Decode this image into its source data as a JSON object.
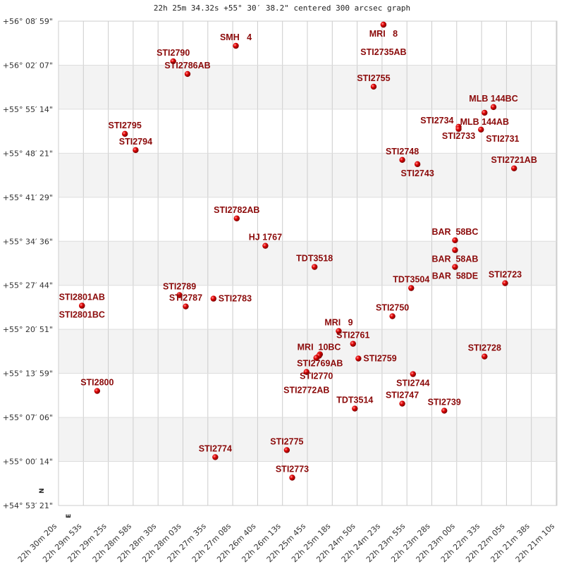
{
  "chart_data": {
    "type": "scatter",
    "title": "22h 25m 34.32s +55° 30′ 38.2\" centered 300 arcsec graph",
    "x_ticks": [
      "22h 30m 20s",
      "22h 29m 53s",
      "22h 29m 25s",
      "22h 28m 58s",
      "22h 28m 30s",
      "22h 28m 03s",
      "22h 27m 35s",
      "22h 27m 08s",
      "22h 26m 40s",
      "22h 26m 13s",
      "22h 25m 45s",
      "22h 25m 18s",
      "22h 24m 50s",
      "22h 24m 23s",
      "22h 23m 55s",
      "22h 23m 28s",
      "22h 23m 00s",
      "22h 22m 33s",
      "22h 22m 05s",
      "22h 21m 38s",
      "22h 21m 10s"
    ],
    "y_ticks": [
      "+56° 08′ 59\"",
      "+56° 02′ 07\"",
      "+55° 55′ 14\"",
      "+55° 48′ 21\"",
      "+55° 41′ 29\"",
      "+55° 34′ 36\"",
      "+55° 27′ 44\"",
      "+55° 20′ 51\"",
      "+55° 13′ 59\"",
      "+55° 07′ 06\"",
      "+55° 00′ 14\"",
      "+54° 53′ 21\""
    ],
    "x_range": [
      "22h 30m 20s",
      "22h 21m 10s"
    ],
    "y_range": [
      "+56° 08′ 59\"",
      "+54° 53′ 21\""
    ],
    "grid": true,
    "orientation_labels": {
      "north": "N",
      "east": "E"
    },
    "colors": {
      "star": "#dd0000",
      "label": "#8b0a0a",
      "band": "#f3f3f3",
      "grid": "#cccccc"
    },
    "points": [
      {
        "name": "MRI   8",
        "ra": "22h 24m 16s",
        "dec": "+56° 08′ 26\""
      },
      {
        "name": "STI2735AB",
        "ra": "22h 24m 16s",
        "dec": "+56° 08′ 26\""
      },
      {
        "name": "SMH   4",
        "ra": "22h 27m 01s",
        "dec": "+56° 05′ 08\""
      },
      {
        "name": "STI2790",
        "ra": "22h 28m 11s",
        "dec": "+56° 02′ 43\""
      },
      {
        "name": "STI2786AB",
        "ra": "22h 27m 55s",
        "dec": "+56° 00′ 44\""
      },
      {
        "name": "STI2755",
        "ra": "22h 24m 27s",
        "dec": "+55° 58′ 45\""
      },
      {
        "name": "MLB 144BC",
        "ra": "22h 22m 13s",
        "dec": "+55° 55′ 34\""
      },
      {
        "name": "MLB 144AB",
        "ra": "22h 22m 23s",
        "dec": "+55° 54′ 41\""
      },
      {
        "name": "STI2733",
        "ra": "22h 22m 52s",
        "dec": "+55° 52′ 29\""
      },
      {
        "name": "STI2734",
        "ra": "22h 22m 52s",
        "dec": "+55° 52′ 09\""
      },
      {
        "name": "STI2731",
        "ra": "22h 22m 27s",
        "dec": "+55° 52′ 03\""
      },
      {
        "name": "STI2795",
        "ra": "22h 29m 05s",
        "dec": "+55° 51′ 23\""
      },
      {
        "name": "STI2794",
        "ra": "22h 28m 53s",
        "dec": "+55° 48′ 51\""
      },
      {
        "name": "STI2748",
        "ra": "22h 23m 55s",
        "dec": "+55° 47′ 19\""
      },
      {
        "name": "STI2743",
        "ra": "22h 23m 38s",
        "dec": "+55° 46′ 39\""
      },
      {
        "name": "STI2721AB",
        "ra": "22h 21m 50s",
        "dec": "+55° 46′ 00\""
      },
      {
        "name": "STI2782AB",
        "ra": "22h 27m 00s",
        "dec": "+55° 38′ 11\""
      },
      {
        "name": "HJ 1767",
        "ra": "22h 26m 28s",
        "dec": "+55° 33′ 54\""
      },
      {
        "name": "BAR  58BC",
        "ra": "22h 22m 56s",
        "dec": "+55° 34′ 46\""
      },
      {
        "name": "BAR  58AB",
        "ra": "22h 22m 56s",
        "dec": "+55° 33′ 14\""
      },
      {
        "name": "BAR  58DE",
        "ra": "22h 22m 56s",
        "dec": "+55° 30′ 36\""
      },
      {
        "name": "TDT3518",
        "ra": "22h 25m 33s",
        "dec": "+55° 30′ 36\""
      },
      {
        "name": "TDT3504",
        "ra": "22h 23m 45s",
        "dec": "+55° 27′ 18\""
      },
      {
        "name": "STI2723",
        "ra": "22h 22m 00s",
        "dec": "+55° 28′ 04\""
      },
      {
        "name": "STI2801AB",
        "ra": "22h 29m 53s",
        "dec": "+55° 24′ 33\""
      },
      {
        "name": "STI2801BC",
        "ra": "22h 29m 53s",
        "dec": "+55° 24′ 33\""
      },
      {
        "name": "STI2789",
        "ra": "22h 28m 04s",
        "dec": "+55° 26′ 12\""
      },
      {
        "name": "STI2787",
        "ra": "22h 27m 57s",
        "dec": "+55° 24′ 26\""
      },
      {
        "name": "STI2783",
        "ra": "22h 27m 26s",
        "dec": "+55° 25′ 39\""
      },
      {
        "name": "STI2750",
        "ra": "22h 24m 06s",
        "dec": "+55° 22′ 54\""
      },
      {
        "name": "MRI   9",
        "ra": "22h 25m 06s",
        "dec": "+55° 20′ 35\""
      },
      {
        "name": "STI2761",
        "ra": "22h 24m 50s",
        "dec": "+55° 18′ 36\""
      },
      {
        "name": "STI2769AB",
        "ra": "22h 25m 27s",
        "dec": "+55° 16′ 57\""
      },
      {
        "name": "MRI  10BC",
        "ra": "22h 25m 28s",
        "dec": "+55° 16′ 44\""
      },
      {
        "name": "STI2770",
        "ra": "22h 25m 31s",
        "dec": "+55° 16′ 24\""
      },
      {
        "name": "STI2759",
        "ra": "22h 24m 44s",
        "dec": "+55° 16′ 18\""
      },
      {
        "name": "STI2772AB",
        "ra": "22h 25m 42s",
        "dec": "+55° 14′ 12\""
      },
      {
        "name": "STI2744",
        "ra": "22h 23m 43s",
        "dec": "+55° 13′ 52\""
      },
      {
        "name": "STI2728",
        "ra": "22h 22m 23s",
        "dec": "+55° 16′ 37\""
      },
      {
        "name": "STI2800",
        "ra": "22h 29m 36s",
        "dec": "+55° 11′ 14\""
      },
      {
        "name": "TDT3514",
        "ra": "22h 24m 48s",
        "dec": "+55° 08′ 29\""
      },
      {
        "name": "STI2747",
        "ra": "22h 23m 55s",
        "dec": "+55° 09′ 15\""
      },
      {
        "name": "STI2739",
        "ra": "22h 23m 08s",
        "dec": "+55° 08′ 09\""
      },
      {
        "name": "STI2774",
        "ra": "22h 27m 24s",
        "dec": "+55° 00′ 54\""
      },
      {
        "name": "STI2775",
        "ra": "22h 26m 04s",
        "dec": "+55° 02′ 00\""
      },
      {
        "name": "STI2773",
        "ra": "22h 25m 58s",
        "dec": "+54° 57′ 42\""
      }
    ]
  }
}
